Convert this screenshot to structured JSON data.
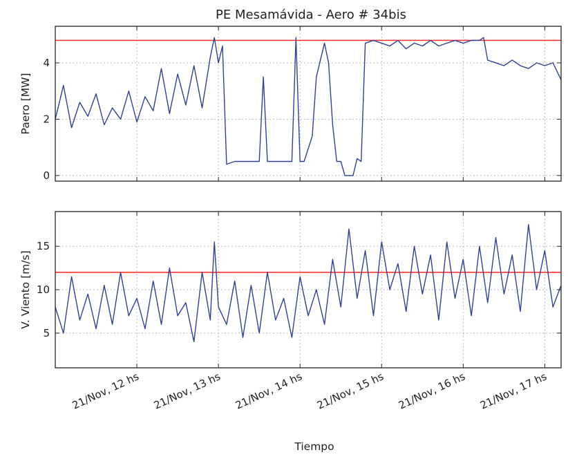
{
  "chart_data": [
    {
      "type": "line",
      "title": "PE Mesamávida - Aero # 34bis",
      "xlabel": "",
      "ylabel": "Paero [MW]",
      "ylim": [
        -0.2,
        5.3
      ],
      "yticks": [
        0,
        2,
        4
      ],
      "grid": true,
      "x_unit": "hours of day, 21/Nov",
      "xlim": [
        11.0,
        17.2
      ],
      "reference_line": {
        "value": 4.8,
        "color": "#ff2b2b"
      },
      "series": [
        {
          "color": "#2f3f9a",
          "x": [
            11.0,
            11.1,
            11.2,
            11.3,
            11.4,
            11.5,
            11.6,
            11.7,
            11.8,
            11.9,
            12.0,
            12.1,
            12.2,
            12.3,
            12.4,
            12.5,
            12.6,
            12.7,
            12.8,
            12.9,
            12.95,
            13.0,
            13.05,
            13.1,
            13.2,
            13.3,
            13.5,
            13.55,
            13.6,
            13.65,
            13.7,
            13.8,
            13.9,
            13.95,
            14.0,
            14.05,
            14.15,
            14.2,
            14.3,
            14.35,
            14.4,
            14.45,
            14.5,
            14.55,
            14.6,
            14.65,
            14.7,
            14.75,
            14.8,
            14.9,
            15.0,
            15.1,
            15.2,
            15.3,
            15.4,
            15.5,
            15.6,
            15.7,
            15.8,
            15.9,
            16.0,
            16.1,
            16.2,
            16.25,
            16.3,
            16.4,
            16.5,
            16.6,
            16.7,
            16.8,
            16.9,
            17.0,
            17.1,
            17.2
          ],
          "y": [
            2.0,
            3.2,
            1.7,
            2.6,
            2.1,
            2.9,
            1.8,
            2.4,
            2.0,
            3.0,
            1.9,
            2.8,
            2.3,
            3.8,
            2.2,
            3.6,
            2.5,
            3.9,
            2.4,
            4.2,
            4.9,
            4.0,
            4.6,
            0.4,
            0.5,
            0.5,
            0.5,
            3.5,
            0.5,
            0.5,
            0.5,
            0.5,
            0.5,
            4.9,
            0.5,
            0.5,
            1.4,
            3.5,
            4.7,
            4.0,
            1.8,
            0.5,
            0.5,
            0.0,
            0.0,
            0.0,
            0.6,
            0.5,
            4.7,
            4.8,
            4.7,
            4.6,
            4.8,
            4.5,
            4.7,
            4.6,
            4.8,
            4.6,
            4.7,
            4.8,
            4.7,
            4.8,
            4.8,
            4.9,
            4.1,
            4.0,
            3.9,
            4.1,
            3.9,
            3.8,
            4.0,
            3.9,
            4.0,
            3.4
          ]
        }
      ]
    },
    {
      "type": "line",
      "title": "",
      "xlabel": "Tiempo",
      "ylabel": "V. Viento [m/s]",
      "ylim": [
        1.0,
        19.0
      ],
      "yticks": [
        5,
        10,
        15
      ],
      "grid": true,
      "x_unit": "hours of day, 21/Nov",
      "xlim": [
        11.0,
        17.2
      ],
      "xticks": [
        12,
        13,
        14,
        15,
        16,
        17
      ],
      "xtick_labels": [
        "21/Nov, 12 hs",
        "21/Nov, 13 hs",
        "21/Nov, 14 hs",
        "21/Nov, 15 hs",
        "21/Nov, 16 hs",
        "21/Nov, 17 hs"
      ],
      "reference_line": {
        "value": 12,
        "color": "#ff2b2b"
      },
      "series": [
        {
          "color": "#2f3f9a",
          "x": [
            11.0,
            11.1,
            11.2,
            11.3,
            11.4,
            11.5,
            11.6,
            11.7,
            11.8,
            11.9,
            12.0,
            12.1,
            12.2,
            12.3,
            12.4,
            12.5,
            12.6,
            12.7,
            12.8,
            12.9,
            12.95,
            13.0,
            13.1,
            13.2,
            13.3,
            13.4,
            13.5,
            13.6,
            13.7,
            13.8,
            13.9,
            14.0,
            14.1,
            14.2,
            14.3,
            14.4,
            14.5,
            14.6,
            14.7,
            14.8,
            14.9,
            15.0,
            15.1,
            15.2,
            15.3,
            15.4,
            15.5,
            15.6,
            15.7,
            15.8,
            15.9,
            16.0,
            16.1,
            16.2,
            16.3,
            16.4,
            16.5,
            16.6,
            16.7,
            16.8,
            16.9,
            17.0,
            17.1,
            17.2
          ],
          "y": [
            8.0,
            5.0,
            11.5,
            6.5,
            9.5,
            5.5,
            10.5,
            6.0,
            12.0,
            7.0,
            9.0,
            5.5,
            11.0,
            6.0,
            12.5,
            7.0,
            8.5,
            4.0,
            12.0,
            6.5,
            15.5,
            8.0,
            6.0,
            11.0,
            4.5,
            10.5,
            5.0,
            12.0,
            6.5,
            9.0,
            4.5,
            11.5,
            7.0,
            10.0,
            6.0,
            13.5,
            8.0,
            17.0,
            9.0,
            14.5,
            7.0,
            15.5,
            10.0,
            13.0,
            7.5,
            15.0,
            9.5,
            14.0,
            6.5,
            15.5,
            9.0,
            13.5,
            7.0,
            15.0,
            8.5,
            16.0,
            9.5,
            14.0,
            7.5,
            17.5,
            10.0,
            14.5,
            8.0,
            10.5
          ]
        }
      ]
    }
  ]
}
